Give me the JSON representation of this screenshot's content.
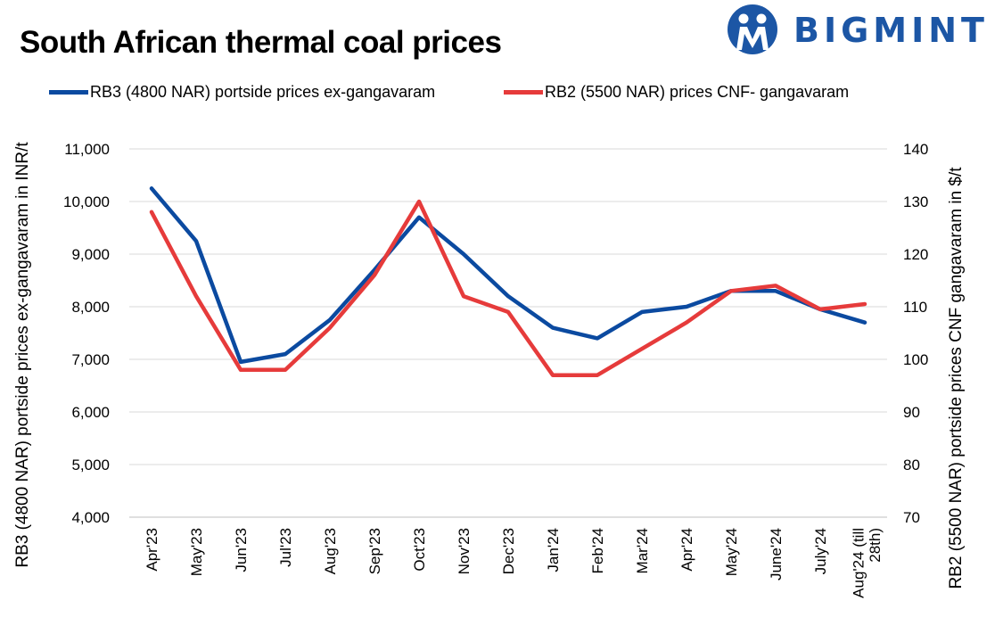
{
  "title": "South African thermal coal prices",
  "logo": {
    "text": "BIGMINT",
    "color": "#1c56a5"
  },
  "chart_data": {
    "type": "line",
    "categories": [
      "Apr'23",
      "May'23",
      "Jun'23",
      "Jul'23",
      "Aug'23",
      "Sep'23",
      "Oct'23",
      "Nov'23",
      "Dec'23",
      "Jan'24",
      "Feb'24",
      "Mar'24",
      "Apr'24",
      "May'24",
      "June'24",
      "July'24",
      "Aug'24 (till 28th)"
    ],
    "series": [
      {
        "name": "RB3 (4800 NAR) portside prices ex-gangavaram",
        "axis": "left",
        "color": "#0b4aa0",
        "values": [
          10250,
          9250,
          6950,
          7100,
          7750,
          8700,
          9700,
          9000,
          8200,
          7600,
          7400,
          7900,
          8000,
          8300,
          8300,
          7950,
          7700
        ]
      },
      {
        "name": "RB2 (5500 NAR) prices CNF- gangavaram",
        "axis": "right",
        "color": "#e63b3b",
        "values": [
          128,
          112,
          98,
          98,
          106,
          116,
          130,
          112,
          109,
          97,
          97,
          102,
          107,
          113,
          114,
          109.5,
          110.5
        ]
      }
    ],
    "ylabel": "RB3 (4800 NAR) portside prices ex-gangavaram  in INR/t",
    "y2label": "RB2 (5500 NAR) portside prices CNF  gangavaram  in $/t",
    "ylim": [
      4000,
      11000
    ],
    "y2lim": [
      70,
      140
    ],
    "yticks": [
      "4,000",
      "5,000",
      "6,000",
      "7,000",
      "8,000",
      "9,000",
      "10,000",
      "11,000"
    ],
    "y2ticks": [
      "70",
      "80",
      "90",
      "100",
      "110",
      "120",
      "130",
      "140"
    ],
    "grid": true,
    "legend": "top"
  }
}
